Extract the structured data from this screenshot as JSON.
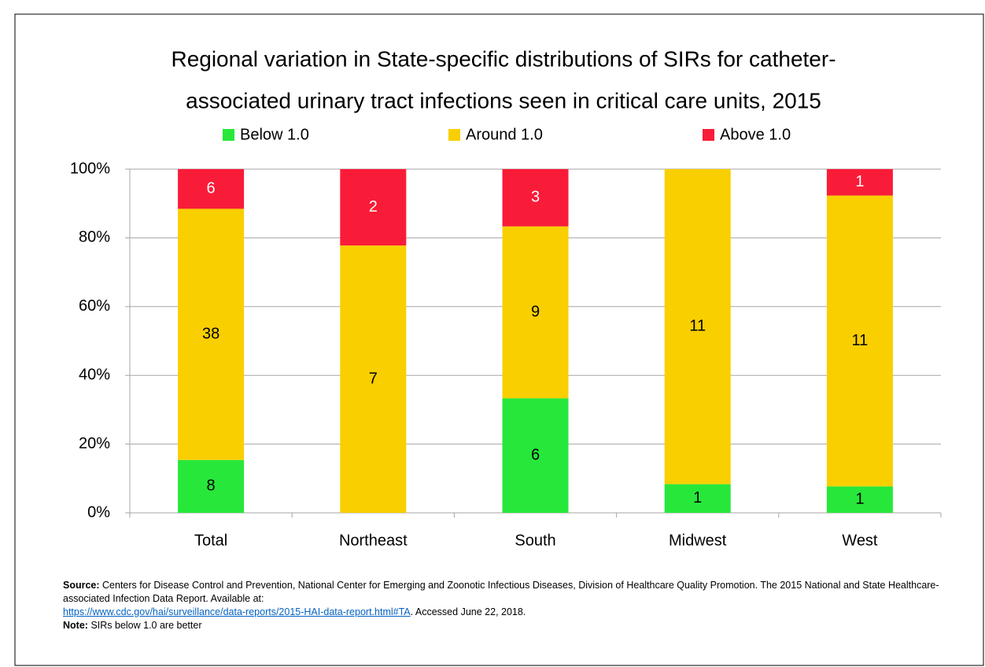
{
  "chart_data": {
    "type": "bar",
    "stacking": "percent",
    "title": "Regional variation in State-specific distributions of SIRs for catheter-associated urinary tract infections seen in critical care units, 2015",
    "title_lines": [
      "Regional variation in State-specific distributions of SIRs for catheter-",
      "associated urinary tract infections seen in critical care units, 2015"
    ],
    "categories": [
      "Total",
      "Northeast",
      "South",
      "Midwest",
      "West"
    ],
    "series": [
      {
        "name": "Below 1.0",
        "color": "#27e83a",
        "values": [
          8,
          0,
          6,
          1,
          1
        ]
      },
      {
        "name": "Around 1.0",
        "color": "#f9cf00",
        "values": [
          38,
          7,
          9,
          11,
          11
        ]
      },
      {
        "name": "Above 1.0",
        "color": "#f91c38",
        "values": [
          6,
          2,
          3,
          0,
          1
        ]
      }
    ],
    "ylim": [
      0,
      100
    ],
    "yticks": [
      {
        "value": 0,
        "label": "0%"
      },
      {
        "value": 20,
        "label": "20%"
      },
      {
        "value": 40,
        "label": "40%"
      },
      {
        "value": 60,
        "label": "60%"
      },
      {
        "value": 80,
        "label": "80%"
      },
      {
        "value": 100,
        "label": "100%"
      }
    ],
    "grid": true,
    "legend": "top"
  },
  "footnote": {
    "source_label": "Source:",
    "source_text": "Centers for Disease Control and Prevention, National Center for Emerging and Zoonotic Infectious Diseases, Division of Healthcare Quality Promotion. The 2015 National and State Healthcare-associated Infection Data Report. Available at:",
    "link": "https://www.cdc.gov/hai/surveillance/data-reports/2015-HAI-data-report.html#TA",
    "after_link": ". Accessed June 22, 2018.",
    "note_label": "Note:",
    "note_text": "SIRs below 1.0 are better"
  }
}
